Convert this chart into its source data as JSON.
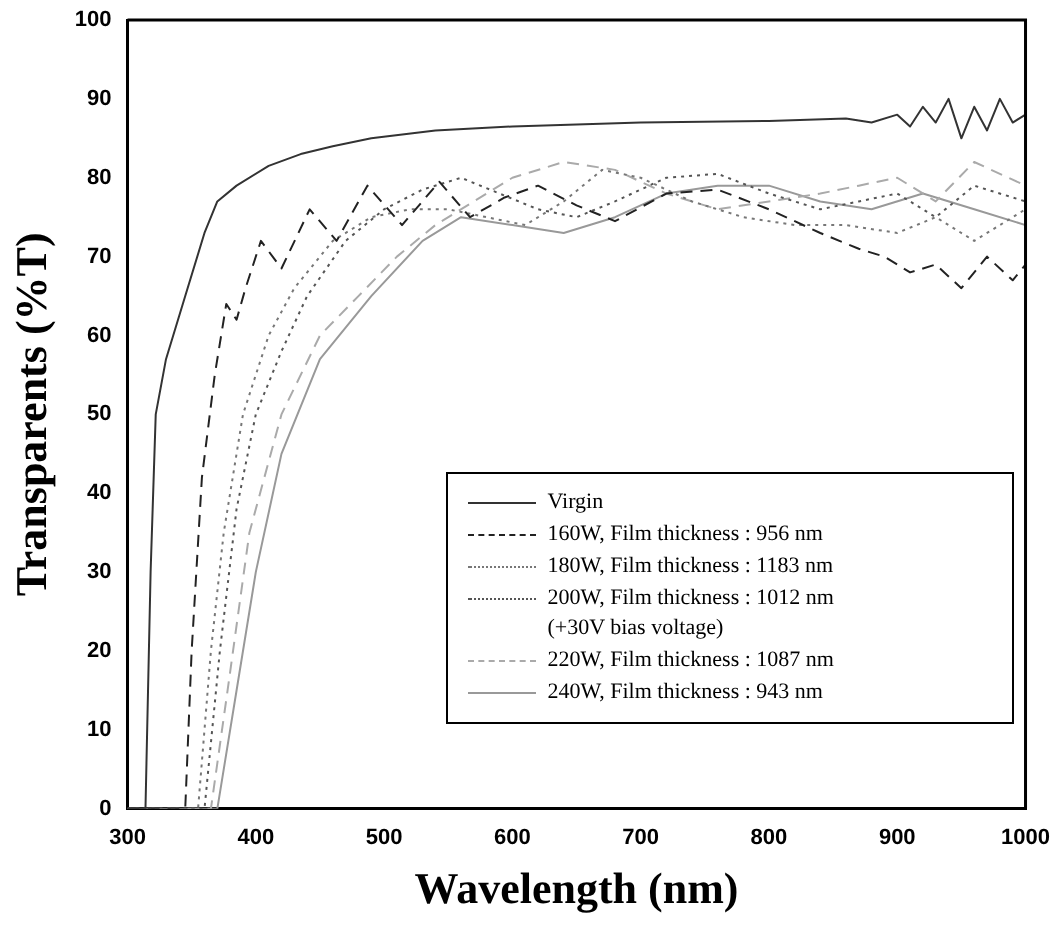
{
  "chart_data": {
    "type": "line",
    "xlabel": "Wavelength (nm)",
    "ylabel": "Transparents (%T)",
    "xlim": [
      300,
      1000
    ],
    "xticks": [
      300,
      400,
      500,
      600,
      700,
      800,
      900,
      1000
    ],
    "ylim": [
      0,
      100
    ],
    "yticks": [
      0,
      10,
      20,
      30,
      40,
      50,
      60,
      70,
      80,
      90,
      100
    ],
    "grid": false,
    "legend": "bottom right",
    "marker": "none",
    "series": [
      {
        "name": "Virgin",
        "color": "#333333",
        "line_style": "solid",
        "x": [
          300,
          314,
          318,
          322,
          330,
          345,
          360,
          370,
          385,
          410,
          435,
          460,
          490,
          540,
          600,
          700,
          800,
          860,
          880,
          900,
          910,
          920,
          930,
          940,
          950,
          960,
          970,
          980,
          990,
          1000
        ],
        "values": [
          0,
          0,
          30,
          50,
          57,
          65,
          73,
          77,
          79,
          81.5,
          83,
          84,
          85,
          86,
          86.5,
          87,
          87.2,
          87.5,
          87,
          88,
          86.5,
          89,
          87,
          90,
          85,
          89,
          86,
          90,
          87,
          88
        ]
      },
      {
        "name": "160W, Film thickness :  956 nm",
        "color": "#222222",
        "line_style": "dashed",
        "x": [
          300,
          345,
          350,
          358,
          368,
          377,
          385,
          392,
          404,
          420,
          442,
          463,
          487,
          514,
          543,
          567,
          594,
          620,
          650,
          680,
          720,
          760,
          800,
          840,
          870,
          890,
          910,
          930,
          950,
          970,
          990,
          1000
        ],
        "values": [
          0,
          0,
          20,
          42,
          55,
          64,
          62,
          66,
          72,
          68.5,
          76,
          72,
          79,
          74,
          79.5,
          75,
          77.5,
          79,
          76.5,
          74.5,
          78,
          78.5,
          76,
          73,
          71,
          70,
          68,
          69,
          66,
          70,
          67,
          69
        ]
      },
      {
        "name": "180W, Film thickness : 1183 nm",
        "color": "#777777",
        "line_style": "dotted",
        "x": [
          300,
          355,
          365,
          375,
          390,
          410,
          430,
          460,
          490,
          520,
          550,
          580,
          610,
          640,
          670,
          700,
          740,
          780,
          820,
          860,
          900,
          930,
          960,
          1000
        ],
        "values": [
          0,
          0,
          20,
          35,
          50,
          60,
          66,
          72,
          75,
          76,
          76,
          75,
          74,
          77,
          81,
          80,
          77,
          75,
          74,
          74,
          73,
          75,
          72,
          76
        ]
      },
      {
        "name": "200W, Film thickness : 1012 nm\n(+30V bias voltage)",
        "color": "#555555",
        "line_style": "dotted",
        "x": [
          300,
          360,
          372,
          385,
          400,
          420,
          440,
          470,
          500,
          530,
          560,
          590,
          620,
          650,
          680,
          720,
          760,
          800,
          840,
          870,
          900,
          930,
          960,
          1000
        ],
        "values": [
          0,
          0,
          20,
          38,
          50,
          58,
          65,
          72,
          76,
          78.5,
          80,
          78,
          76,
          75,
          77,
          80,
          80.5,
          78,
          76,
          77,
          78,
          75,
          79,
          77
        ]
      },
      {
        "name": "220W, Film thickness : 1087 nm",
        "color": "#aaaaaa",
        "line_style": "dashed",
        "x": [
          300,
          365,
          378,
          395,
          420,
          450,
          480,
          510,
          540,
          570,
          600,
          640,
          680,
          720,
          760,
          800,
          840,
          870,
          900,
          930,
          960,
          1000
        ],
        "values": [
          0,
          0,
          15,
          35,
          50,
          60,
          65,
          70,
          74,
          77,
          80,
          82,
          81,
          78,
          76,
          77,
          78,
          79,
          80,
          77,
          82,
          79
        ]
      },
      {
        "name": "240W, Film thickness :  943 nm",
        "color": "#999999",
        "line_style": "solid",
        "x": [
          300,
          370,
          385,
          400,
          420,
          450,
          490,
          530,
          560,
          600,
          640,
          680,
          720,
          760,
          800,
          840,
          880,
          920,
          960,
          1000
        ],
        "values": [
          0,
          0,
          15,
          30,
          45,
          57,
          65,
          72,
          75,
          74,
          73,
          75,
          78,
          79,
          79,
          77,
          76,
          78,
          76,
          74
        ]
      }
    ]
  }
}
